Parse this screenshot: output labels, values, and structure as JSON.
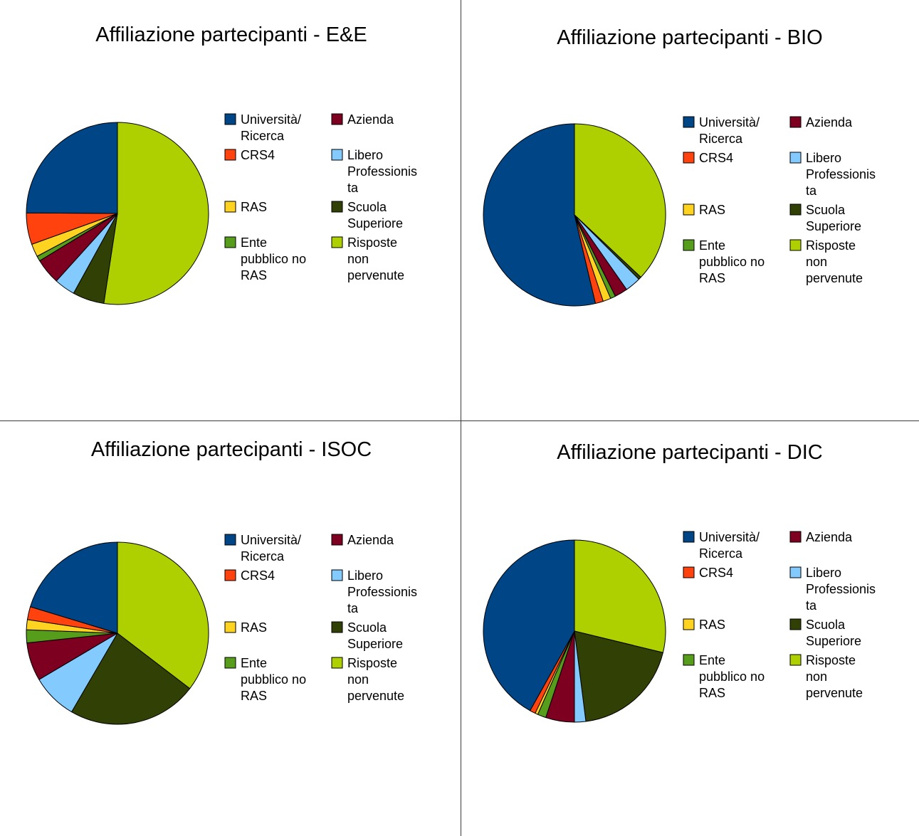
{
  "chart_data": [
    {
      "type": "pie",
      "title": "Affiliazione partecipanti - E&E",
      "categories": [
        "Università/ Ricerca",
        "Azienda",
        "CRS4",
        "Libero Professionista",
        "RAS",
        "Scuola Superiore",
        "Ente pubblico no RAS",
        "Risposte non pervenute"
      ],
      "values": [
        24.9,
        4.6,
        5.6,
        3.7,
        2.3,
        5.6,
        0.9,
        52.4
      ],
      "order": [
        7,
        5,
        3,
        1,
        6,
        4,
        2,
        0
      ],
      "legend_position": "right"
    },
    {
      "type": "pie",
      "title": "Affiliazione partecipanti - BIO",
      "categories": [
        "Università/ Ricerca",
        "Azienda",
        "CRS4",
        "Libero Professionista",
        "RAS",
        "Scuola Superiore",
        "Ente pubblico no RAS",
        "Risposte non pervenute"
      ],
      "values": [
        53.7,
        2.3,
        1.4,
        2.8,
        1.4,
        0.5,
        0.9,
        37.0
      ],
      "order": [
        7,
        5,
        3,
        1,
        6,
        4,
        2,
        0
      ],
      "legend_position": "right"
    },
    {
      "type": "pie",
      "title": "Affiliazione partecipanti - ISOC",
      "categories": [
        "Università/ Ricerca",
        "Azienda",
        "CRS4",
        "Libero Professionista",
        "RAS",
        "Scuola Superiore",
        "Ente pubblico no RAS",
        "Risposte non pervenute"
      ],
      "values": [
        20.3,
        6.8,
        2.3,
        8.1,
        1.8,
        23.0,
        2.3,
        35.4
      ],
      "order": [
        7,
        5,
        3,
        1,
        6,
        4,
        2,
        0
      ],
      "legend_position": "right"
    },
    {
      "type": "pie",
      "title": "Affiliazione partecipanti - DIC",
      "categories": [
        "Università/ Ricerca",
        "Azienda",
        "CRS4",
        "Libero Professionista",
        "RAS",
        "Scuola Superiore",
        "Ente pubblico no RAS",
        "Risposte non pervenute"
      ],
      "values": [
        41.9,
        5.1,
        1.0,
        2.0,
        0.5,
        19.2,
        1.5,
        28.8
      ],
      "order": [
        7,
        5,
        3,
        1,
        6,
        4,
        2,
        0
      ],
      "legend_position": "right"
    }
  ],
  "legend": {
    "labels": [
      [
        "Università/",
        "Ricerca"
      ],
      [
        "Azienda"
      ],
      [
        "CRS4"
      ],
      [
        "Libero",
        "Professionis",
        "ta"
      ],
      [
        "RAS"
      ],
      [
        "Scuola",
        "Superiore"
      ],
      [
        "Ente",
        "pubblico no",
        "RAS"
      ],
      [
        "Risposte",
        "non",
        "pervenute"
      ]
    ]
  },
  "colors": [
    "#004586",
    "#7e0021",
    "#ff420e",
    "#83caff",
    "#ffd320",
    "#314004",
    "#579d1c",
    "#aecf00"
  ],
  "slice_border_color": "#000000"
}
